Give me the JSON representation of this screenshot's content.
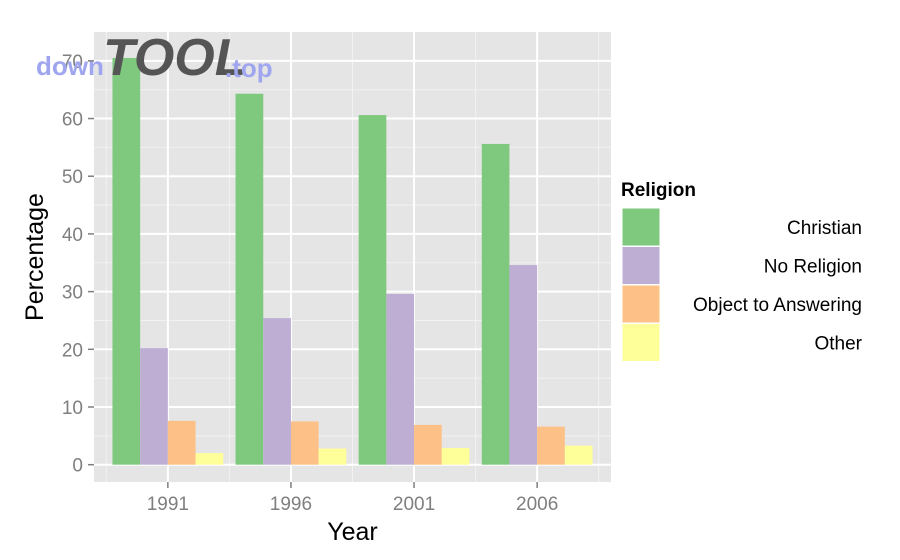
{
  "chart_data": {
    "type": "bar",
    "title": "",
    "xlabel": "Year",
    "ylabel": "Percentage",
    "categories": [
      "1991",
      "1996",
      "2001",
      "2006"
    ],
    "ylim": [
      -3,
      75
    ],
    "yticks": [
      0,
      10,
      20,
      30,
      40,
      50,
      60,
      70
    ],
    "grid": true,
    "legend": {
      "title": "Religion",
      "position": "right"
    },
    "series": [
      {
        "name": "Christian",
        "color": "#7fc97f",
        "values": [
          70.5,
          64.3,
          60.6,
          55.6
        ]
      },
      {
        "name": "No Religion",
        "color": "#beaed4",
        "values": [
          20.2,
          25.4,
          29.6,
          34.6
        ]
      },
      {
        "name": "Object to Answering",
        "color": "#fdc086",
        "values": [
          7.6,
          7.5,
          6.9,
          6.6
        ]
      },
      {
        "name": "Other",
        "color": "#ffff99",
        "values": [
          2.0,
          2.8,
          2.9,
          3.3
        ]
      }
    ]
  },
  "watermark": {
    "part1": "down",
    "part2": "TOOL",
    "part3": ".top"
  }
}
